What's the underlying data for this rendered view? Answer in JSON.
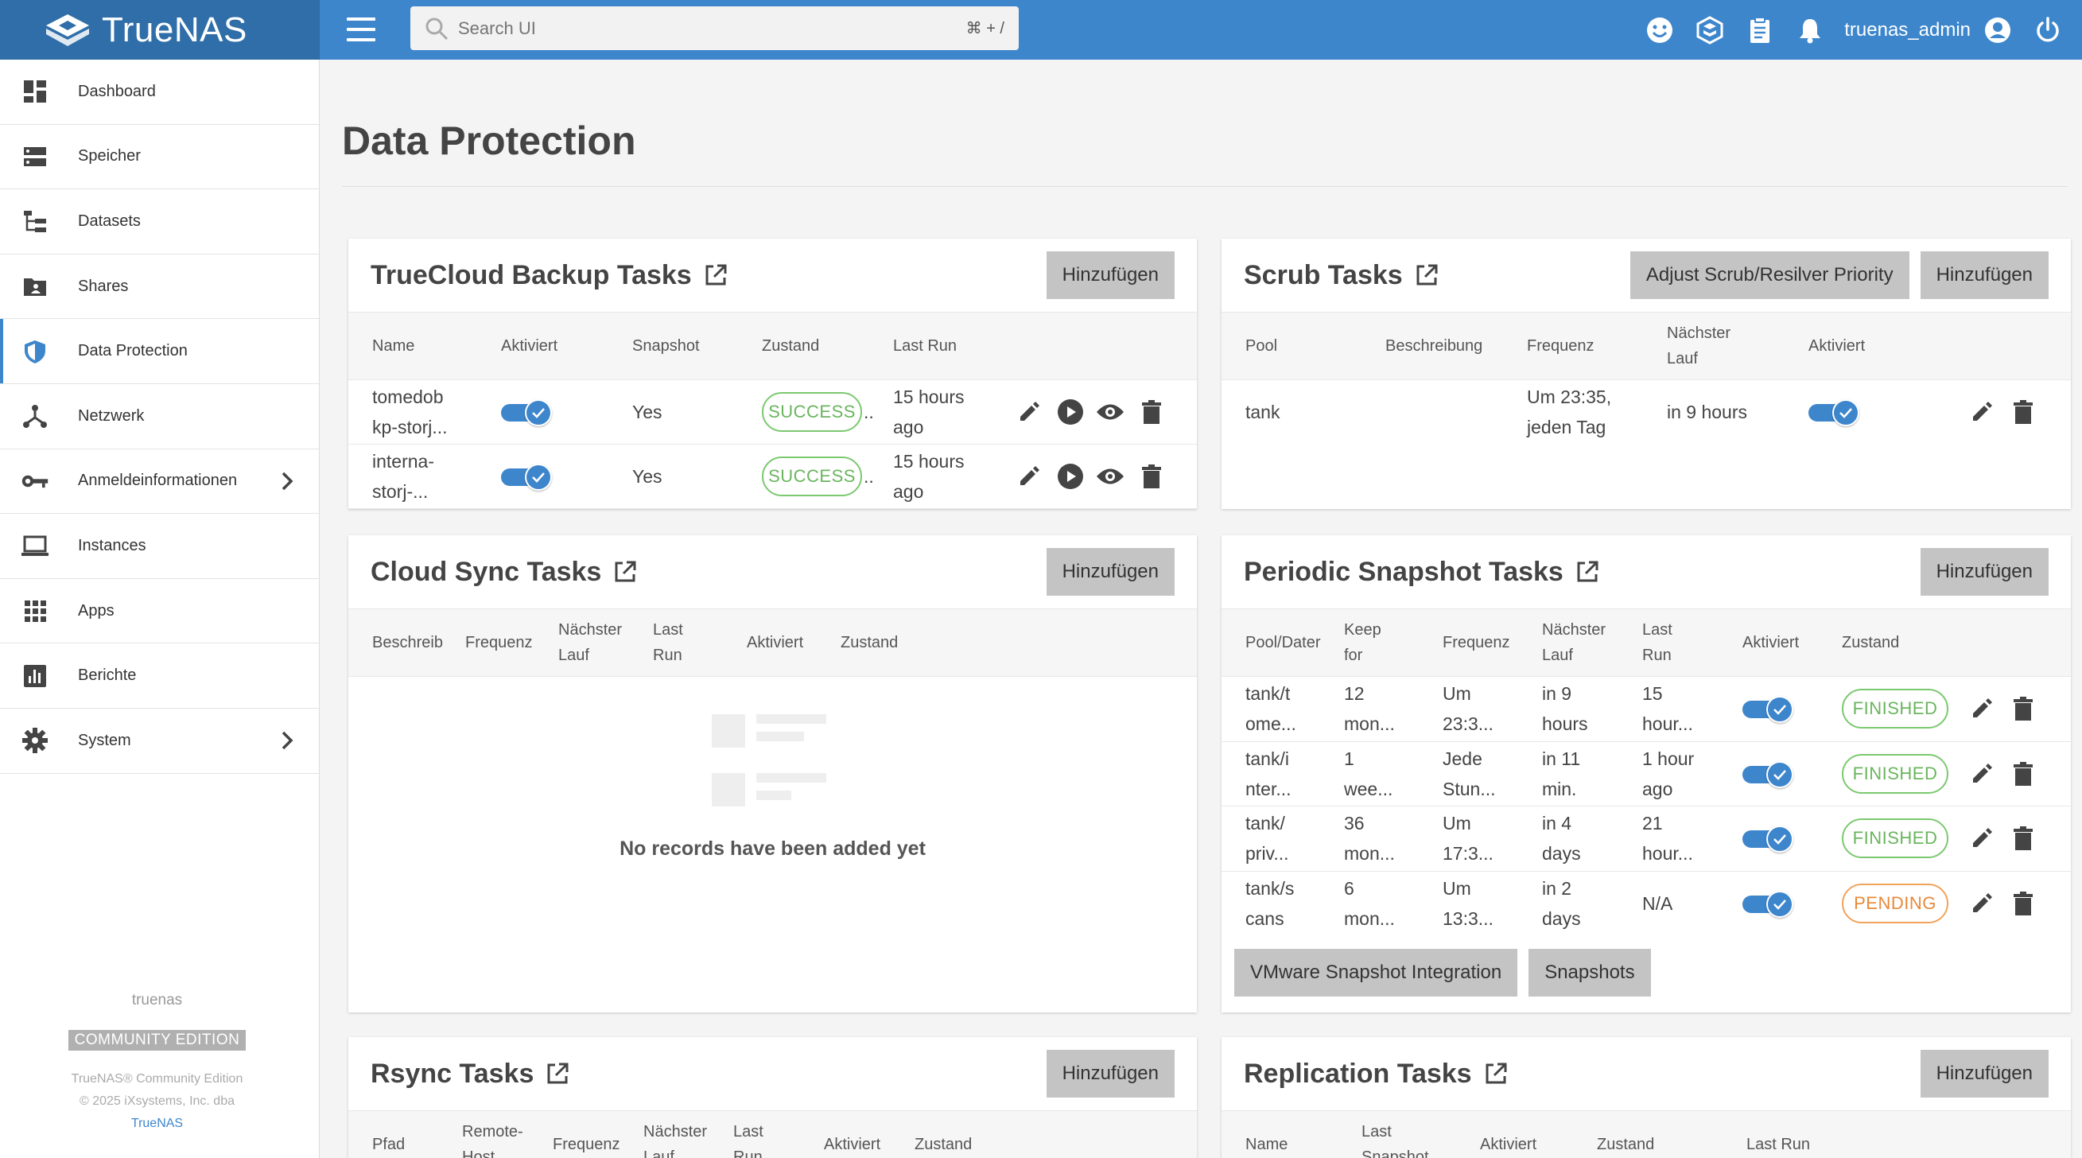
{
  "topbar": {
    "brand": "TrueNAS",
    "search_placeholder": "Search UI",
    "search_shortcut": "⌘ + /",
    "username": "truenas_admin",
    "icons": [
      "feedback-icon",
      "truecommand-icon",
      "jobs-icon",
      "notifications-icon",
      "account-icon",
      "power-icon"
    ]
  },
  "sidebar": {
    "items": [
      {
        "label": "Dashboard",
        "icon": "dashboard-icon"
      },
      {
        "label": "Speicher",
        "icon": "storage-icon"
      },
      {
        "label": "Datasets",
        "icon": "datasets-icon"
      },
      {
        "label": "Shares",
        "icon": "shares-icon"
      },
      {
        "label": "Data Protection",
        "icon": "shield-icon"
      },
      {
        "label": "Netzwerk",
        "icon": "network-icon"
      },
      {
        "label": "Anmeldeinformationen",
        "icon": "key-icon"
      },
      {
        "label": "Instances",
        "icon": "laptop-icon"
      },
      {
        "label": "Apps",
        "icon": "apps-icon"
      },
      {
        "label": "Berichte",
        "icon": "reports-icon"
      },
      {
        "label": "System",
        "icon": "gear-icon"
      }
    ],
    "hostname": "truenas",
    "edition": "COMMUNITY EDITION",
    "copyright_1": "TrueNAS® Community Edition",
    "copyright_2": "© 2025 iXsystems, Inc. dba",
    "copyright_link": "TrueNAS"
  },
  "page": {
    "title": "Data Protection"
  },
  "truecloud": {
    "title": "TrueCloud Backup Tasks",
    "add": "Hinzufügen",
    "columns": [
      "Name",
      "Aktiviert",
      "Snapshot",
      "Zustand",
      "Last Run"
    ],
    "rows": [
      {
        "name_1": "tomedob",
        "name_2": "kp-storj...",
        "snapshot": "Yes",
        "state": "SUCCESS",
        "last_1": "15 hours",
        "last_2": "ago"
      },
      {
        "name_1": "interna-",
        "name_2": "storj-...",
        "snapshot": "Yes",
        "state": "SUCCESS",
        "last_1": "15 hours",
        "last_2": "ago"
      }
    ]
  },
  "scrub": {
    "title": "Scrub Tasks",
    "priority": "Adjust Scrub/Resilver Priority",
    "add": "Hinzufügen",
    "columns": [
      "Pool",
      "Beschreibung",
      "Frequenz",
      "Nächster",
      "Lauf",
      "Aktiviert"
    ],
    "rows": [
      {
        "pool": "tank",
        "freq_1": "Um 23:35,",
        "freq_2": "jeden Tag",
        "next": "in 9 hours"
      }
    ]
  },
  "cloudsync": {
    "title": "Cloud Sync Tasks",
    "add": "Hinzufügen",
    "columns": [
      "Beschreib",
      "Frequenz",
      "Nächster",
      "Lauf",
      "Last",
      "Run",
      "Aktiviert",
      "Zustand"
    ],
    "empty": "No records have been added yet"
  },
  "periodic": {
    "title": "Periodic Snapshot Tasks",
    "add": "Hinzufügen",
    "columns": [
      "Pool/Dater",
      "Keep",
      "for",
      "Frequenz",
      "Nächster",
      "Lauf",
      "Last",
      "Run",
      "Aktiviert",
      "Zustand"
    ],
    "rows": [
      {
        "pool_1": "tank/t",
        "pool_2": "ome...",
        "keep_1": "12",
        "keep_2": "mon...",
        "freq_1": "Um",
        "freq_2": "23:3...",
        "next_1": "in 9",
        "next_2": "hours",
        "last_1": "15",
        "last_2": "hour...",
        "state": "FINISHED"
      },
      {
        "pool_1": "tank/i",
        "pool_2": "nter...",
        "keep_1": "1",
        "keep_2": "wee...",
        "freq_1": "Jede",
        "freq_2": "Stun...",
        "next_1": "in 11",
        "next_2": "min.",
        "last_1": "1 hour",
        "last_2": "ago",
        "state": "FINISHED"
      },
      {
        "pool_1": "tank/",
        "pool_2": "priv...",
        "keep_1": "36",
        "keep_2": "mon...",
        "freq_1": "Um",
        "freq_2": "17:3...",
        "next_1": "in 4",
        "next_2": "days",
        "last_1": "21",
        "last_2": "hour...",
        "state": "FINISHED"
      },
      {
        "pool_1": "tank/s",
        "pool_2": "cans",
        "keep_1": "6",
        "keep_2": "mon...",
        "freq_1": "Um",
        "freq_2": "13:3...",
        "next_1": "in 2",
        "next_2": "days",
        "last_1": "N/A",
        "last_2": "",
        "state": "PENDING"
      }
    ],
    "vmware": "VMware Snapshot Integration",
    "snapshots": "Snapshots"
  },
  "rsync": {
    "title": "Rsync Tasks",
    "add": "Hinzufügen",
    "columns": [
      "Pfad",
      "Remote-",
      "Host",
      "Frequenz",
      "Nächster",
      "Lauf",
      "Last",
      "Run",
      "Aktiviert",
      "Zustand"
    ]
  },
  "replication": {
    "title": "Replication Tasks",
    "add": "Hinzufügen",
    "columns": [
      "Name",
      "Last",
      "Snapshot",
      "Aktiviert",
      "Zustand",
      "Last Run"
    ]
  },
  "colors": {
    "accent": "#3d86cc",
    "brand_dark": "#2f6ea8",
    "success": "#6ab55e",
    "pending": "#e8893a",
    "button": "#c4c4c4"
  }
}
